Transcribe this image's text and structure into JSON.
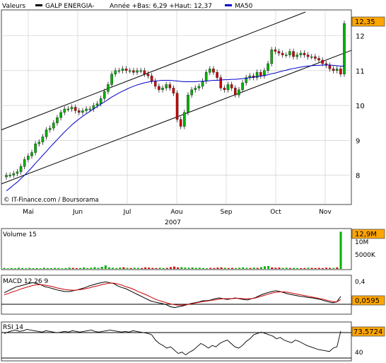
{
  "header": {
    "series_label": "Valeurs",
    "stock_name": "GALP ENERGIA-",
    "range_text": "Année +Bas: 6,29 +Haut: 12,37",
    "ma_label": "MA50"
  },
  "colors": {
    "up": "#00b000",
    "down": "#cc0000",
    "ma": "#0000cc",
    "grid": "#c8c8c8",
    "tag_fill": "#ffa500",
    "panel_bg": "#ffffff"
  },
  "credit": "© IT-Finance.com / Boursorama",
  "chart_data": [
    {
      "type": "candlestick",
      "title": "GALP ENERGIA-",
      "x_tick_labels": [
        "Mai",
        "Jun",
        "Jul",
        "Aou",
        "Sep",
        "Oct",
        "Nov"
      ],
      "x_year_label": "2007",
      "y_tick_labels": [
        "8",
        "9",
        "10",
        "11",
        "12"
      ],
      "ylim": [
        7.2,
        12.7
      ],
      "last_value_tag": "12,35",
      "grid": true,
      "legend": [
        "Valeurs",
        "MA50"
      ],
      "price_path": [
        8.0,
        8.0,
        8.05,
        8.1,
        8.25,
        8.45,
        8.55,
        8.65,
        8.9,
        8.95,
        9.1,
        9.3,
        9.35,
        9.5,
        9.65,
        9.8,
        9.9,
        9.9,
        9.95,
        9.85,
        9.8,
        9.85,
        9.9,
        9.9,
        10.0,
        10.05,
        10.2,
        10.4,
        10.6,
        10.9,
        11.0,
        11.0,
        11.05,
        11.0,
        11.0,
        10.95,
        11.0,
        11.0,
        10.9,
        10.85,
        10.7,
        10.55,
        10.45,
        10.5,
        10.6,
        10.5,
        10.35,
        9.6,
        9.4,
        9.8,
        10.3,
        10.45,
        10.5,
        10.55,
        10.7,
        10.95,
        11.05,
        10.95,
        10.8,
        10.5,
        10.45,
        10.6,
        10.5,
        10.3,
        10.45,
        10.65,
        10.8,
        10.85,
        10.8,
        10.95,
        10.85,
        11.0,
        11.2,
        11.6,
        11.55,
        11.5,
        11.45,
        11.45,
        11.55,
        11.4,
        11.45,
        11.5,
        11.45,
        11.4,
        11.4,
        11.35,
        11.3,
        11.2,
        11.15,
        11.05,
        11.0,
        11.05,
        10.9,
        12.35
      ],
      "ma50": [
        7.55,
        7.63,
        7.72,
        7.8,
        7.9,
        8.0,
        8.11,
        8.22,
        8.34,
        8.45,
        8.57,
        8.68,
        8.8,
        8.91,
        9.02,
        9.13,
        9.24,
        9.34,
        9.44,
        9.53,
        9.61,
        9.69,
        9.76,
        9.83,
        9.9,
        9.97,
        10.04,
        10.1,
        10.17,
        10.24,
        10.3,
        10.36,
        10.41,
        10.46,
        10.51,
        10.55,
        10.59,
        10.62,
        10.65,
        10.67,
        10.69,
        10.7,
        10.71,
        10.72,
        10.72,
        10.72,
        10.71,
        10.7,
        10.69,
        10.68,
        10.68,
        10.68,
        10.68,
        10.69,
        10.69,
        10.7,
        10.71,
        10.72,
        10.72,
        10.73,
        10.74,
        10.74,
        10.75,
        10.75,
        10.76,
        10.77,
        10.78,
        10.8,
        10.81,
        10.83,
        10.84,
        10.86,
        10.88,
        10.91,
        10.93,
        10.96,
        10.99,
        11.01,
        11.04,
        11.06,
        11.08,
        11.1,
        11.12,
        11.13,
        11.14,
        11.15,
        11.15,
        11.16,
        11.16,
        11.16,
        11.15,
        11.14,
        11.13,
        11.13
      ],
      "channel_upper": {
        "start": 9.3,
        "end": 12.68
      },
      "channel_lower": {
        "start": 7.75,
        "end": 11.58
      }
    },
    {
      "type": "bar",
      "title": "Volume 15",
      "y_tick_labels": [
        "10M",
        "5000K"
      ],
      "last_value_tag": "12,9M",
      "volume_path": [
        0.35,
        0.2,
        0.3,
        0.25,
        0.4,
        0.3,
        0.2,
        0.35,
        0.25,
        0.3,
        0.2,
        0.4,
        0.3,
        0.25,
        0.35,
        0.3,
        0.2,
        0.3,
        0.45,
        0.35,
        0.25,
        0.3,
        0.5,
        0.3,
        0.4,
        0.6,
        0.35,
        0.7,
        1.2,
        0.5,
        0.4,
        0.3,
        0.45,
        0.55,
        0.35,
        0.3,
        0.4,
        0.35,
        0.3,
        0.5,
        0.45,
        0.35,
        0.3,
        0.4,
        0.3,
        0.35,
        0.6,
        0.8,
        0.5,
        0.6,
        0.45,
        0.4,
        0.5,
        0.35,
        0.4,
        0.3,
        0.25,
        0.35,
        0.3,
        0.45,
        0.5,
        0.4,
        0.3,
        0.35,
        0.3,
        0.4,
        0.5,
        0.35,
        0.3,
        0.45,
        0.35,
        0.6,
        0.9,
        1.0,
        0.5,
        0.4,
        0.45,
        0.35,
        0.4,
        0.3,
        0.35,
        0.3,
        0.25,
        0.3,
        0.4,
        0.35,
        0.3,
        0.35,
        0.3,
        0.4,
        0.35,
        0.3,
        0.5,
        12.9
      ]
    },
    {
      "type": "line",
      "title": "MACD 12 26 9",
      "y_tick_labels": [
        "0,4"
      ],
      "last_value_tag": "0,0595",
      "macd": [
        0.15,
        0.2,
        0.25,
        0.3,
        0.32,
        0.35,
        0.38,
        0.4,
        0.38,
        0.35,
        0.3,
        0.28,
        0.25,
        0.22,
        0.2,
        0.18,
        0.18,
        0.2,
        0.22,
        0.25,
        0.28,
        0.32,
        0.35,
        0.38,
        0.4,
        0.42,
        0.4,
        0.38,
        0.32,
        0.28,
        0.25,
        0.2,
        0.15,
        0.1,
        0.05,
        0.0,
        -0.05,
        -0.08,
        -0.1,
        -0.12,
        -0.15,
        -0.2,
        -0.22,
        -0.2,
        -0.18,
        -0.15,
        -0.12,
        -0.1,
        -0.08,
        -0.05,
        -0.05,
        -0.03,
        0.0,
        0.02,
        0.0,
        -0.02,
        0.0,
        0.02,
        0.0,
        -0.02,
        -0.03,
        0.0,
        0.03,
        0.08,
        0.12,
        0.15,
        0.18,
        0.2,
        0.18,
        0.15,
        0.12,
        0.1,
        0.08,
        0.06,
        0.05,
        0.03,
        0.02,
        0.0,
        -0.02,
        -0.05,
        -0.08,
        -0.1,
        -0.08,
        0.06
      ],
      "signal": [
        0.1,
        0.13,
        0.17,
        0.2,
        0.24,
        0.27,
        0.3,
        0.33,
        0.35,
        0.35,
        0.34,
        0.32,
        0.3,
        0.27,
        0.25,
        0.23,
        0.22,
        0.21,
        0.22,
        0.23,
        0.25,
        0.27,
        0.3,
        0.32,
        0.35,
        0.37,
        0.39,
        0.39,
        0.37,
        0.34,
        0.3,
        0.27,
        0.23,
        0.18,
        0.14,
        0.1,
        0.05,
        0.0,
        -0.04,
        -0.07,
        -0.1,
        -0.13,
        -0.15,
        -0.16,
        -0.16,
        -0.15,
        -0.13,
        -0.11,
        -0.09,
        -0.07,
        -0.06,
        -0.04,
        -0.03,
        -0.01,
        0.0,
        0.0,
        0.0,
        0.01,
        0.01,
        0.0,
        0.0,
        0.0,
        0.02,
        0.05,
        0.08,
        0.11,
        0.14,
        0.16,
        0.17,
        0.17,
        0.16,
        0.14,
        0.12,
        0.1,
        0.08,
        0.06,
        0.04,
        0.02,
        0.0,
        -0.02,
        -0.05,
        -0.07,
        -0.08,
        -0.02
      ],
      "ylim": [
        -0.35,
        0.55
      ]
    },
    {
      "type": "line",
      "title": "RSI 14",
      "y_tick_labels": [
        "40"
      ],
      "last_value_tag": "73,5724",
      "rsi": [
        70,
        72,
        74,
        75,
        73,
        74,
        76,
        75,
        74,
        73,
        72,
        74,
        73,
        72,
        71,
        72,
        73,
        72,
        74,
        73,
        72,
        73,
        74,
        75,
        73,
        72,
        73,
        74,
        75,
        74,
        73,
        72,
        73,
        72,
        74,
        73,
        72,
        71,
        70,
        68,
        60,
        55,
        52,
        48,
        50,
        45,
        40,
        42,
        38,
        42,
        45,
        50,
        55,
        52,
        48,
        52,
        50,
        55,
        58,
        60,
        55,
        50,
        48,
        52,
        58,
        62,
        68,
        70,
        72,
        70,
        68,
        66,
        62,
        64,
        60,
        58,
        56,
        60,
        58,
        55,
        52,
        50,
        48,
        46,
        45,
        44,
        43,
        48,
        50,
        73.57
      ],
      "ylim": [
        30,
        85
      ]
    }
  ]
}
